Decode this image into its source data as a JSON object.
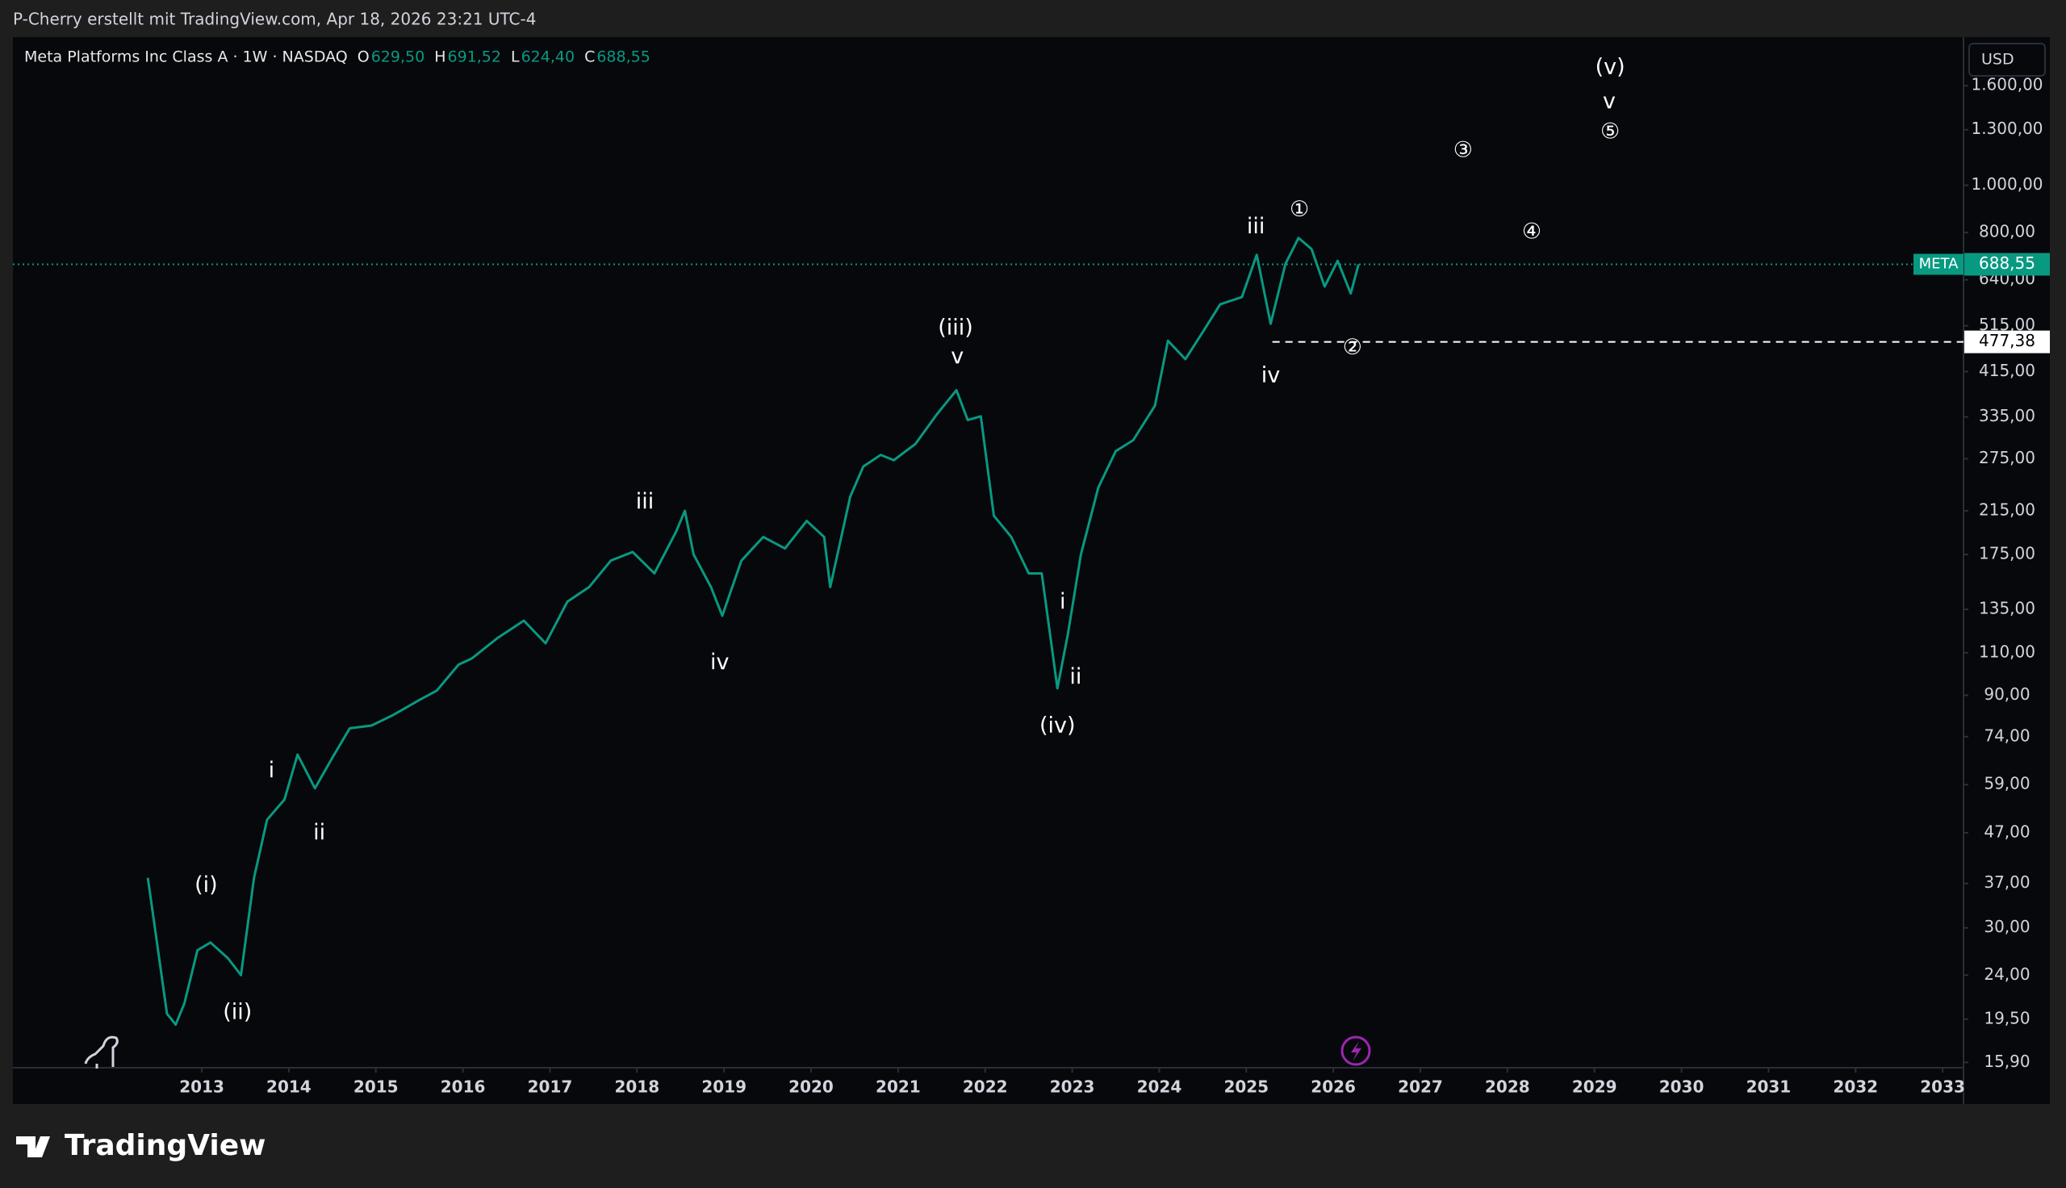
{
  "chart_data": {
    "type": "line",
    "credit": "P-Cherry erstellt mit TradingView.com, Apr 18, 2026 23:21 UTC-4",
    "title": "Meta Platforms Inc Class A · 1W · NASDAQ",
    "ohlc": [
      {
        "key": "O",
        "value": 629.5,
        "label": "629,50"
      },
      {
        "key": "H",
        "value": 691.52,
        "label": "691,52"
      },
      {
        "key": "L",
        "value": 624.4,
        "label": "624,40"
      },
      {
        "key": "C",
        "value": 688.55,
        "label": "688,55"
      }
    ],
    "currency": "USD",
    "brand": "TradingView",
    "log_scale": true,
    "grid": false,
    "xlim": [
      2010.83,
      2033.24
    ],
    "xticks": [
      2013,
      2014,
      2015,
      2016,
      2017,
      2018,
      2019,
      2020,
      2021,
      2022,
      2023,
      2024,
      2025,
      2026,
      2027,
      2028,
      2029,
      2030,
      2031,
      2032,
      2033
    ],
    "ylim": [
      15.5,
      1990
    ],
    "yticks": [
      {
        "value": 15.9,
        "label": "15,90"
      },
      {
        "value": 19.5,
        "label": "19,50"
      },
      {
        "value": 24,
        "label": "24,00"
      },
      {
        "value": 30,
        "label": "30,00"
      },
      {
        "value": 37,
        "label": "37,00"
      },
      {
        "value": 47,
        "label": "47,00"
      },
      {
        "value": 59,
        "label": "59,00"
      },
      {
        "value": 74,
        "label": "74,00"
      },
      {
        "value": 90,
        "label": "90,00"
      },
      {
        "value": 110,
        "label": "110,00"
      },
      {
        "value": 135,
        "label": "135,00"
      },
      {
        "value": 175,
        "label": "175,00"
      },
      {
        "value": 215,
        "label": "215,00"
      },
      {
        "value": 275,
        "label": "275,00"
      },
      {
        "value": 335,
        "label": "335,00"
      },
      {
        "value": 415,
        "label": "415,00"
      },
      {
        "value": 515,
        "label": "515,00"
      },
      {
        "value": 640,
        "label": "640,00"
      },
      {
        "value": 800,
        "label": "800,00"
      },
      {
        "value": 1000,
        "label": "1.000,00"
      },
      {
        "value": 1300,
        "label": "1.300,00"
      },
      {
        "value": 1600,
        "label": "1.600,00"
      }
    ],
    "series": [
      {
        "name": "META",
        "color": "#089981",
        "x": [
          2012.38,
          2012.45,
          2012.6,
          2012.7,
          2012.8,
          2012.95,
          2013.1,
          2013.3,
          2013.45,
          2013.6,
          2013.75,
          2013.95,
          2014.1,
          2014.3,
          2014.5,
          2014.7,
          2014.95,
          2015.2,
          2015.5,
          2015.7,
          2015.95,
          2016.1,
          2016.4,
          2016.7,
          2016.95,
          2017.2,
          2017.45,
          2017.7,
          2017.95,
          2018.2,
          2018.45,
          2018.55,
          2018.65,
          2018.85,
          2018.98,
          2019.2,
          2019.45,
          2019.7,
          2019.95,
          2020.15,
          2020.22,
          2020.45,
          2020.6,
          2020.8,
          2020.95,
          2021.2,
          2021.45,
          2021.67,
          2021.8,
          2021.95,
          2022.1,
          2022.3,
          2022.5,
          2022.65,
          2022.83,
          2022.95,
          2023.1,
          2023.3,
          2023.5,
          2023.7,
          2023.95,
          2024.1,
          2024.3,
          2024.5,
          2024.7,
          2024.95,
          2025.12,
          2025.28,
          2025.45,
          2025.6,
          2025.75,
          2025.9,
          2026.05,
          2026.2,
          2026.29
        ],
        "values": [
          38,
          31,
          20,
          19,
          21,
          27,
          28,
          26,
          24,
          38,
          50,
          55,
          68,
          58,
          67,
          77,
          78,
          82,
          88,
          92,
          104,
          107,
          118,
          128,
          115,
          140,
          150,
          170,
          177,
          160,
          195,
          215,
          175,
          150,
          131,
          170,
          190,
          180,
          205,
          190,
          150,
          230,
          265,
          280,
          273,
          295,
          340,
          380,
          330,
          336,
          210,
          190,
          160,
          160,
          93,
          120,
          175,
          240,
          285,
          300,
          353,
          480,
          440,
          500,
          570,
          590,
          720,
          520,
          690,
          780,
          740,
          620,
          700,
          600,
          688.55
        ]
      }
    ],
    "last_price": {
      "symbol": "META",
      "value": 688.55,
      "label": "688,55"
    },
    "level": {
      "value": 477.38,
      "label": "477,38"
    },
    "annotations": [
      {
        "text": "(i)",
        "x": 2013.05,
        "y": 36.6
      },
      {
        "text": "(ii)",
        "x": 2013.41,
        "y": 20.1
      },
      {
        "text": "i",
        "x": 2013.8,
        "y": 62.9
      },
      {
        "text": "ii",
        "x": 2014.35,
        "y": 46.9
      },
      {
        "text": "iii",
        "x": 2018.09,
        "y": 223.8
      },
      {
        "text": "iv",
        "x": 2018.95,
        "y": 104.7
      },
      {
        "text": "(iii)",
        "x": 2021.66,
        "y": 508.8
      },
      {
        "text": "v",
        "x": 2021.68,
        "y": 444
      },
      {
        "text": "(iv)",
        "x": 2022.83,
        "y": 77.7
      },
      {
        "text": "i",
        "x": 2022.89,
        "y": 139.5
      },
      {
        "text": "ii",
        "x": 2023.04,
        "y": 97.8
      },
      {
        "text": "iii",
        "x": 2025.11,
        "y": 821
      },
      {
        "text": "iv",
        "x": 2025.28,
        "y": 406
      },
      {
        "text": "①",
        "x": 2025.61,
        "y": 889
      },
      {
        "text": "②",
        "x": 2026.22,
        "y": 463
      },
      {
        "text": "③",
        "x": 2027.49,
        "y": 1177
      },
      {
        "text": "④",
        "x": 2028.28,
        "y": 801
      },
      {
        "text": "⑤",
        "x": 2029.18,
        "y": 1284
      },
      {
        "text": "v",
        "x": 2029.17,
        "y": 1482
      },
      {
        "text": "(v)",
        "x": 2029.18,
        "y": 1743
      }
    ]
  }
}
